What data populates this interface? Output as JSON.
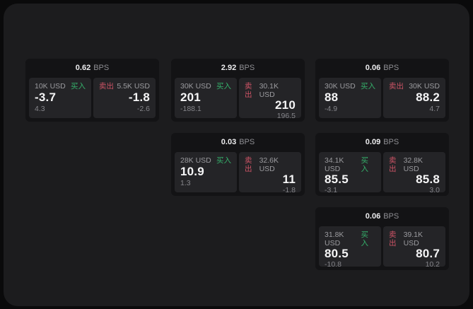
{
  "labels": {
    "buy": "买入",
    "sell": "卖出",
    "bps_unit": "BPS"
  },
  "colors": {
    "outer_background": "#0a0a0b",
    "panel_background": "#1c1c1e",
    "card_background": "#131315",
    "tile_background": "#242427",
    "buy_green": "#35b06b",
    "sell_red": "#cd5466",
    "price_white": "#f5f5f6",
    "muted_gray": "#9b9b9f"
  },
  "cards": [
    {
      "bps": "0.62",
      "buy": {
        "amount": "10K USD",
        "price": "-3.7",
        "delta": "4.3"
      },
      "sell": {
        "amount": "5.5K USD",
        "price": "-1.8",
        "delta": "-2.6"
      }
    },
    {
      "bps": "2.92",
      "buy": {
        "amount": "30K USD",
        "price": "201",
        "delta": "-188.1"
      },
      "sell": {
        "amount": "30.1K USD",
        "price": "210",
        "delta": "196.5"
      }
    },
    {
      "bps": "0.06",
      "buy": {
        "amount": "30K USD",
        "price": "88",
        "delta": "-4.9"
      },
      "sell": {
        "amount": "30K USD",
        "price": "88.2",
        "delta": "4.7"
      }
    },
    {
      "bps": "0.03",
      "buy": {
        "amount": "28K USD",
        "price": "10.9",
        "delta": "1.3"
      },
      "sell": {
        "amount": "32.6K USD",
        "price": "11",
        "delta": "-1.8"
      }
    },
    {
      "bps": "0.09",
      "buy": {
        "amount": "34.1K USD",
        "price": "85.5",
        "delta": "-3.1"
      },
      "sell": {
        "amount": "32.8K USD",
        "price": "85.8",
        "delta": "3.0"
      }
    },
    {
      "bps": "0.06",
      "buy": {
        "amount": "31.8K USD",
        "price": "80.5",
        "delta": "-10.8"
      },
      "sell": {
        "amount": "39.1K USD",
        "price": "80.7",
        "delta": "10.2"
      }
    }
  ]
}
